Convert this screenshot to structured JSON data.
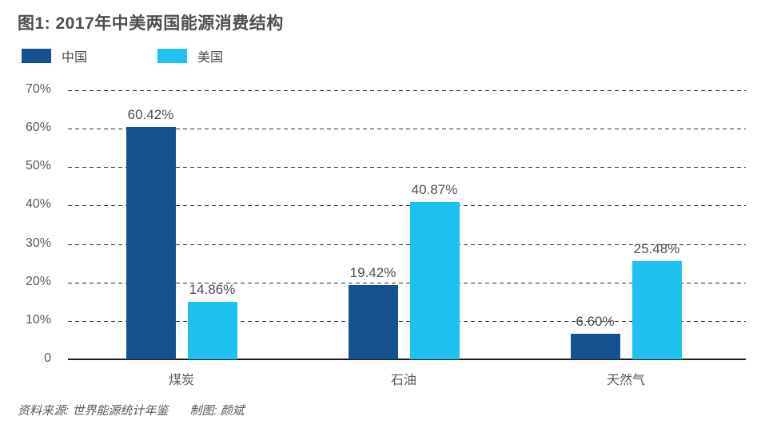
{
  "header": {
    "title": "图1: 2017年中美两国能源消费结构"
  },
  "legend": [
    {
      "label": "中国",
      "color": "#15518f"
    },
    {
      "label": "美国",
      "color": "#1ec1f0"
    }
  ],
  "footer": {
    "source": "资料来源: 世界能源统计年鉴",
    "credit": "制图: 颜斌"
  },
  "chart_data": {
    "type": "bar",
    "title": "图1: 2017年中美两国能源消费结构",
    "categories": [
      "煤炭",
      "石油",
      "天然气"
    ],
    "series": [
      {
        "name": "中国",
        "color": "#15518f",
        "values": [
          60.42,
          19.42,
          6.6
        ],
        "labels": [
          "60.42%",
          "19.42%",
          "6.60%"
        ]
      },
      {
        "name": "美国",
        "color": "#1ec1f0",
        "values": [
          14.86,
          40.87,
          25.48
        ],
        "labels": [
          "14.86%",
          "40.87%",
          "25.48%"
        ]
      }
    ],
    "xlabel": "",
    "ylabel": "",
    "ylim": [
      0,
      70
    ],
    "y_ticks": [
      {
        "value": 70,
        "label": "70%"
      },
      {
        "value": 60,
        "label": "60%"
      },
      {
        "value": 50,
        "label": "50%"
      },
      {
        "value": 40,
        "label": "40%"
      },
      {
        "value": 30,
        "label": "30%"
      },
      {
        "value": 20,
        "label": "20%"
      },
      {
        "value": 10,
        "label": "10%"
      },
      {
        "value": 0,
        "label": "0"
      }
    ],
    "grid": "horizontal-dashed",
    "legend_position": "top-left"
  }
}
